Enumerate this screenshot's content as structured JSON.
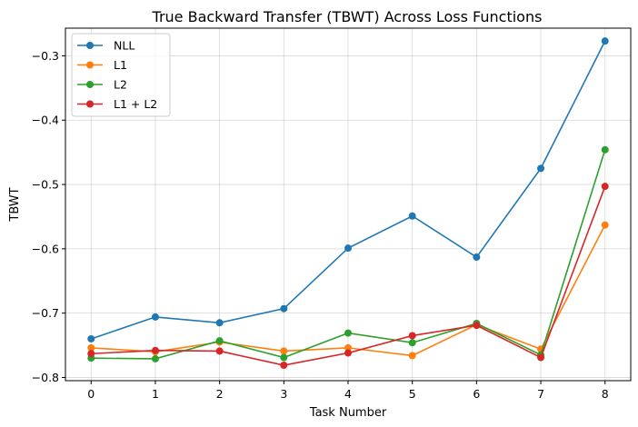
{
  "chart_data": {
    "type": "line",
    "title": "True Backward Transfer (TBWT) Across Loss Functions",
    "xlabel": "Task Number",
    "ylabel": "TBWT",
    "x": [
      0,
      1,
      2,
      3,
      4,
      5,
      6,
      7,
      8
    ],
    "xlim": [
      -0.4,
      8.4
    ],
    "ylim": [
      -0.805,
      -0.257
    ],
    "xticks": [
      "0",
      "1",
      "2",
      "3",
      "4",
      "5",
      "6",
      "7",
      "8"
    ],
    "yticks": [
      -0.8,
      -0.7,
      -0.6,
      -0.5,
      -0.4,
      -0.3
    ],
    "ytick_labels": [
      "−0.8",
      "−0.7",
      "−0.6",
      "−0.5",
      "−0.4",
      "−0.3"
    ],
    "grid": true,
    "legend_position": "top-left",
    "series": [
      {
        "name": "NLL",
        "color": "#1f77b4",
        "values": [
          -0.74,
          -0.706,
          -0.715,
          -0.693,
          -0.599,
          -0.549,
          -0.613,
          -0.475,
          -0.277
        ]
      },
      {
        "name": "L1",
        "color": "#ff7f0e",
        "values": [
          -0.754,
          -0.76,
          -0.745,
          -0.759,
          -0.754,
          -0.766,
          -0.718,
          -0.756,
          -0.563
        ]
      },
      {
        "name": "L2",
        "color": "#2ca02c",
        "values": [
          -0.77,
          -0.771,
          -0.743,
          -0.769,
          -0.731,
          -0.746,
          -0.716,
          -0.765,
          -0.446
        ]
      },
      {
        "name": "L1 + L2",
        "color": "#d62728",
        "values": [
          -0.763,
          -0.758,
          -0.759,
          -0.781,
          -0.762,
          -0.735,
          -0.719,
          -0.769,
          -0.503
        ]
      }
    ]
  }
}
